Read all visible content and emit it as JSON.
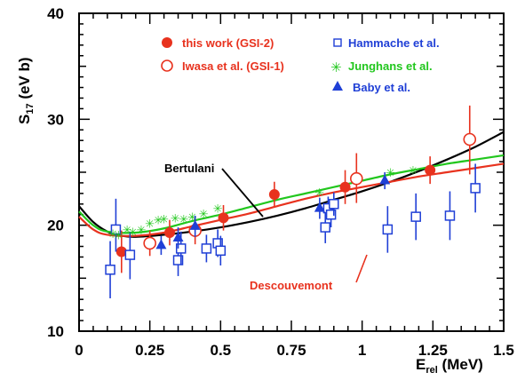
{
  "chart_data": {
    "type": "scatter",
    "xlabel": "E",
    "xlabel_sub": "rel",
    "xlabel_unit": " (MeV)",
    "ylabel": "S",
    "ylabel_sub": "17",
    "ylabel_unit": " (eV b)",
    "xlim": [
      0,
      1.5
    ],
    "ylim": [
      10,
      40
    ],
    "xticks": [
      "0",
      "0.25",
      "0.5",
      "0.75",
      "1",
      "1.25",
      "1.5"
    ],
    "xtick_values": [
      0,
      0.25,
      0.5,
      0.75,
      1.0,
      1.25,
      1.5
    ],
    "yticks": [
      "10",
      "20",
      "30",
      "40"
    ],
    "ytick_values": [
      10,
      20,
      30,
      40
    ],
    "legend": [
      {
        "label": "this work (GSI-2)",
        "color": "#e8321e",
        "marker": "filled-circle"
      },
      {
        "label": "Iwasa et al. (GSI-1)",
        "color": "#e8321e",
        "marker": "open-circle"
      },
      {
        "label": "Hammache et al.",
        "color": "#1f3fd6",
        "marker": "open-square"
      },
      {
        "label": "Junghans et al.",
        "color": "#22c71e",
        "marker": "star"
      },
      {
        "label": "Baby et al.",
        "color": "#1f3fd6",
        "marker": "filled-triangle"
      }
    ],
    "series": [
      {
        "name": "this work (GSI-2)",
        "color": "#e8321e",
        "marker": "filled-circle",
        "points": [
          {
            "x": 0.15,
            "y": 17.5,
            "elo": 15.5,
            "ehi": 19.5
          },
          {
            "x": 0.32,
            "y": 19.3,
            "elo": 18.1,
            "ehi": 20.5
          },
          {
            "x": 0.51,
            "y": 20.7,
            "elo": 19.5,
            "ehi": 21.9
          },
          {
            "x": 0.69,
            "y": 22.9,
            "elo": 21.7,
            "ehi": 24.1
          },
          {
            "x": 0.94,
            "y": 23.6,
            "elo": 22.0,
            "ehi": 25.2
          },
          {
            "x": 1.24,
            "y": 25.2,
            "elo": 23.9,
            "ehi": 26.5
          }
        ]
      },
      {
        "name": "Iwasa et al. (GSI-1)",
        "color": "#e8321e",
        "marker": "open-circle",
        "points": [
          {
            "x": 0.25,
            "y": 18.3,
            "elo": 17.1,
            "ehi": 19.5
          },
          {
            "x": 0.41,
            "y": 19.5,
            "elo": 18.2,
            "ehi": 20.8
          },
          {
            "x": 0.98,
            "y": 24.4,
            "elo": 22.1,
            "ehi": 26.8
          },
          {
            "x": 1.38,
            "y": 28.1,
            "elo": 24.8,
            "ehi": 31.3
          }
        ]
      },
      {
        "name": "Hammache et al.",
        "color": "#1f3fd6",
        "marker": "open-square",
        "points": [
          {
            "x": 0.11,
            "y": 15.8,
            "elo": 13.1,
            "ehi": 18.5
          },
          {
            "x": 0.13,
            "y": 19.6,
            "elo": 17.5,
            "ehi": 22.5
          },
          {
            "x": 0.18,
            "y": 17.2,
            "elo": 14.9,
            "ehi": 19.4
          },
          {
            "x": 0.35,
            "y": 16.7,
            "elo": 15.2,
            "ehi": 18.1
          },
          {
            "x": 0.36,
            "y": 17.8,
            "elo": 16.3,
            "ehi": 19.4
          },
          {
            "x": 0.45,
            "y": 17.8,
            "elo": 16.5,
            "ehi": 19.1
          },
          {
            "x": 0.49,
            "y": 18.3,
            "elo": 17.0,
            "ehi": 19.6
          },
          {
            "x": 0.5,
            "y": 17.6,
            "elo": 16.2,
            "ehi": 19.0
          },
          {
            "x": 0.87,
            "y": 19.8,
            "elo": 18.3,
            "ehi": 21.3
          },
          {
            "x": 0.88,
            "y": 21.6,
            "elo": 20.5,
            "ehi": 22.7
          },
          {
            "x": 0.89,
            "y": 21.0,
            "elo": 19.8,
            "ehi": 22.2
          },
          {
            "x": 0.9,
            "y": 22.0,
            "elo": 20.9,
            "ehi": 23.1
          },
          {
            "x": 1.09,
            "y": 19.6,
            "elo": 17.4,
            "ehi": 21.8
          },
          {
            "x": 1.19,
            "y": 20.8,
            "elo": 18.6,
            "ehi": 23.0
          },
          {
            "x": 1.31,
            "y": 20.9,
            "elo": 18.6,
            "ehi": 23.2
          },
          {
            "x": 1.4,
            "y": 23.5,
            "elo": 21.2,
            "ehi": 25.8
          }
        ]
      },
      {
        "name": "Junghans et al.",
        "color": "#22c71e",
        "marker": "star",
        "points": [
          {
            "x": 0.12,
            "y": 19.2
          },
          {
            "x": 0.14,
            "y": 19.1
          },
          {
            "x": 0.17,
            "y": 19.6
          },
          {
            "x": 0.19,
            "y": 19.4
          },
          {
            "x": 0.22,
            "y": 19.6
          },
          {
            "x": 0.25,
            "y": 20.2
          },
          {
            "x": 0.28,
            "y": 20.5
          },
          {
            "x": 0.3,
            "y": 20.6
          },
          {
            "x": 0.34,
            "y": 20.7
          },
          {
            "x": 0.37,
            "y": 20.6
          },
          {
            "x": 0.4,
            "y": 20.8
          },
          {
            "x": 0.44,
            "y": 21.1
          },
          {
            "x": 0.49,
            "y": 21.6
          },
          {
            "x": 0.85,
            "y": 23.1
          },
          {
            "x": 1.1,
            "y": 25.0
          },
          {
            "x": 1.18,
            "y": 25.2
          }
        ]
      },
      {
        "name": "Baby et al.",
        "color": "#1f3fd6",
        "marker": "filled-triangle",
        "points": [
          {
            "x": 0.29,
            "y": 18.1,
            "elo": 17.2,
            "ehi": 19.0
          },
          {
            "x": 0.35,
            "y": 18.8,
            "elo": 17.8,
            "ehi": 19.8
          },
          {
            "x": 0.41,
            "y": 19.9,
            "elo": 18.9,
            "ehi": 20.9
          },
          {
            "x": 0.85,
            "y": 21.6,
            "elo": 20.6,
            "ehi": 22.6
          },
          {
            "x": 1.08,
            "y": 24.2,
            "elo": 23.4,
            "ehi": 25.0
          }
        ]
      }
    ],
    "curves": [
      {
        "name": "Bertulani",
        "color": "#000000",
        "x": [
          0,
          0.05,
          0.1,
          0.15,
          0.2,
          0.3,
          0.4,
          0.5,
          0.6,
          0.7,
          0.8,
          0.9,
          1.0,
          1.1,
          1.2,
          1.3,
          1.4,
          1.5
        ],
        "y": [
          21.8,
          20.3,
          19.4,
          19.0,
          18.9,
          19.1,
          19.4,
          19.8,
          20.3,
          20.9,
          21.6,
          22.4,
          23.2,
          24.1,
          25.1,
          26.2,
          27.4,
          28.8
        ]
      },
      {
        "name": "Descouvemont",
        "color": "#e8321e",
        "x": [
          0,
          0.05,
          0.1,
          0.2,
          0.3,
          0.4,
          0.5,
          0.6,
          0.7,
          0.8,
          0.9,
          1.0,
          1.1,
          1.2,
          1.3,
          1.4,
          1.5
        ],
        "y": [
          20.8,
          19.6,
          19.1,
          19.0,
          19.3,
          19.9,
          20.5,
          21.1,
          21.8,
          22.5,
          23.1,
          23.6,
          24.1,
          24.6,
          25.0,
          25.4,
          25.8
        ]
      },
      {
        "name": "",
        "color": "#22c71e",
        "x": [
          0,
          0.05,
          0.1,
          0.2,
          0.3,
          0.4,
          0.5,
          0.6,
          0.7,
          0.8,
          0.9,
          1.0,
          1.1,
          1.2,
          1.3,
          1.4,
          1.5
        ],
        "y": [
          21.3,
          20.0,
          19.4,
          19.3,
          19.7,
          20.4,
          21.0,
          21.7,
          22.4,
          23.0,
          23.6,
          24.2,
          24.8,
          25.3,
          25.8,
          26.2,
          26.6
        ]
      }
    ],
    "annotations": [
      {
        "text": "Bertulani",
        "color": "#000000",
        "target_x": 0.65,
        "target_y": 20.6
      },
      {
        "text": "Descouvemont",
        "color": "#e8321e",
        "target_x": 1.08,
        "target_y": 24.0
      }
    ]
  }
}
